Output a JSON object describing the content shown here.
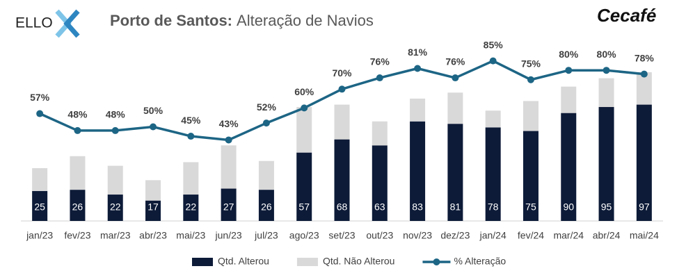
{
  "brand": "ELLO",
  "partner_brand": "Cecafé",
  "chart_data": {
    "type": "bar",
    "stacked": true,
    "title_bold": "Porto de Santos:",
    "title": "Alteração de Navios",
    "categories": [
      "jan/23",
      "fev/23",
      "mar/23",
      "abr/23",
      "mai/23",
      "jun/23",
      "jul/23",
      "ago/23",
      "set/23",
      "out/23",
      "nov/23",
      "dez/23",
      "jan/24",
      "fev/24",
      "mar/24",
      "abr/24",
      "mai/24"
    ],
    "ylim": [
      0,
      157
    ],
    "y2lim": [
      0,
      100
    ],
    "legend": "bottom",
    "series": [
      {
        "name": "Qtd. Alterou",
        "color": "#0d1b38",
        "values": [
          25,
          26,
          22,
          17,
          22,
          27,
          26,
          57,
          68,
          63,
          83,
          81,
          78,
          75,
          90,
          95,
          97
        ]
      },
      {
        "name": "Qtd. Não Alterou",
        "color": "#d9d9d9",
        "values": [
          19,
          28,
          24,
          17,
          27,
          36,
          24,
          38,
          29,
          20,
          19,
          26,
          14,
          25,
          22,
          24,
          27
        ]
      },
      {
        "name": "% Alteração",
        "color": "#1d6585",
        "type": "line",
        "axis": "y2",
        "values": [
          57,
          48,
          48,
          50,
          45,
          43,
          52,
          60,
          70,
          76,
          81,
          76,
          85,
          75,
          80,
          80,
          78
        ],
        "value_labels": [
          "57%",
          "48%",
          "48%",
          "50%",
          "45%",
          "43%",
          "52%",
          "60%",
          "70%",
          "76%",
          "81%",
          "76%",
          "85%",
          "75%",
          "80%",
          "80%",
          "78%"
        ]
      }
    ]
  }
}
